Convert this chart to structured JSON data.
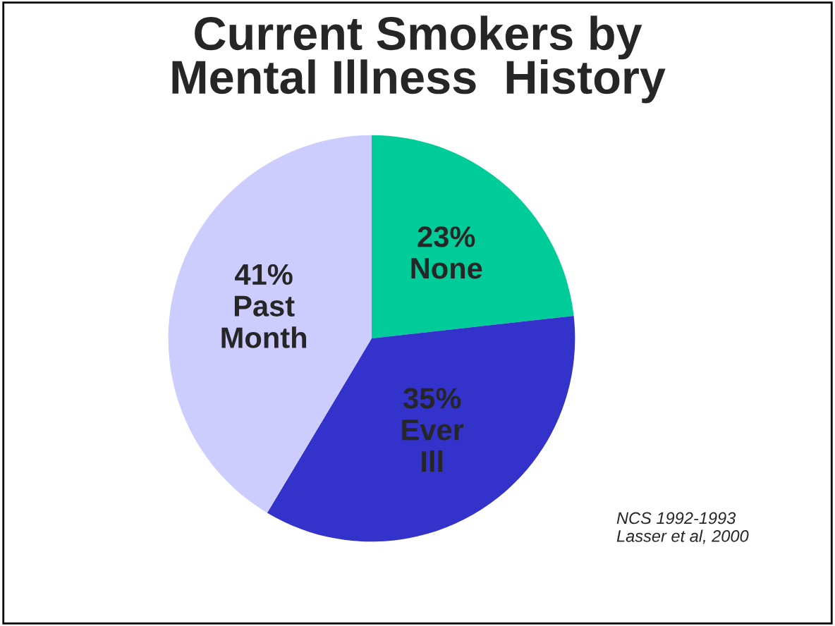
{
  "chart_data": {
    "type": "pie",
    "title": "Current Smokers by\nMental Illness  History",
    "categories": [
      "None",
      "Ever Ill",
      "Past Month"
    ],
    "values": [
      23,
      35,
      41
    ],
    "value_labels": [
      "23%",
      "35%",
      "41%"
    ],
    "colors": [
      "#00cc99",
      "#3333cc",
      "#ccccff"
    ],
    "annotations": [
      "NCS 1992-1993\nLasser et al, 2000"
    ]
  }
}
